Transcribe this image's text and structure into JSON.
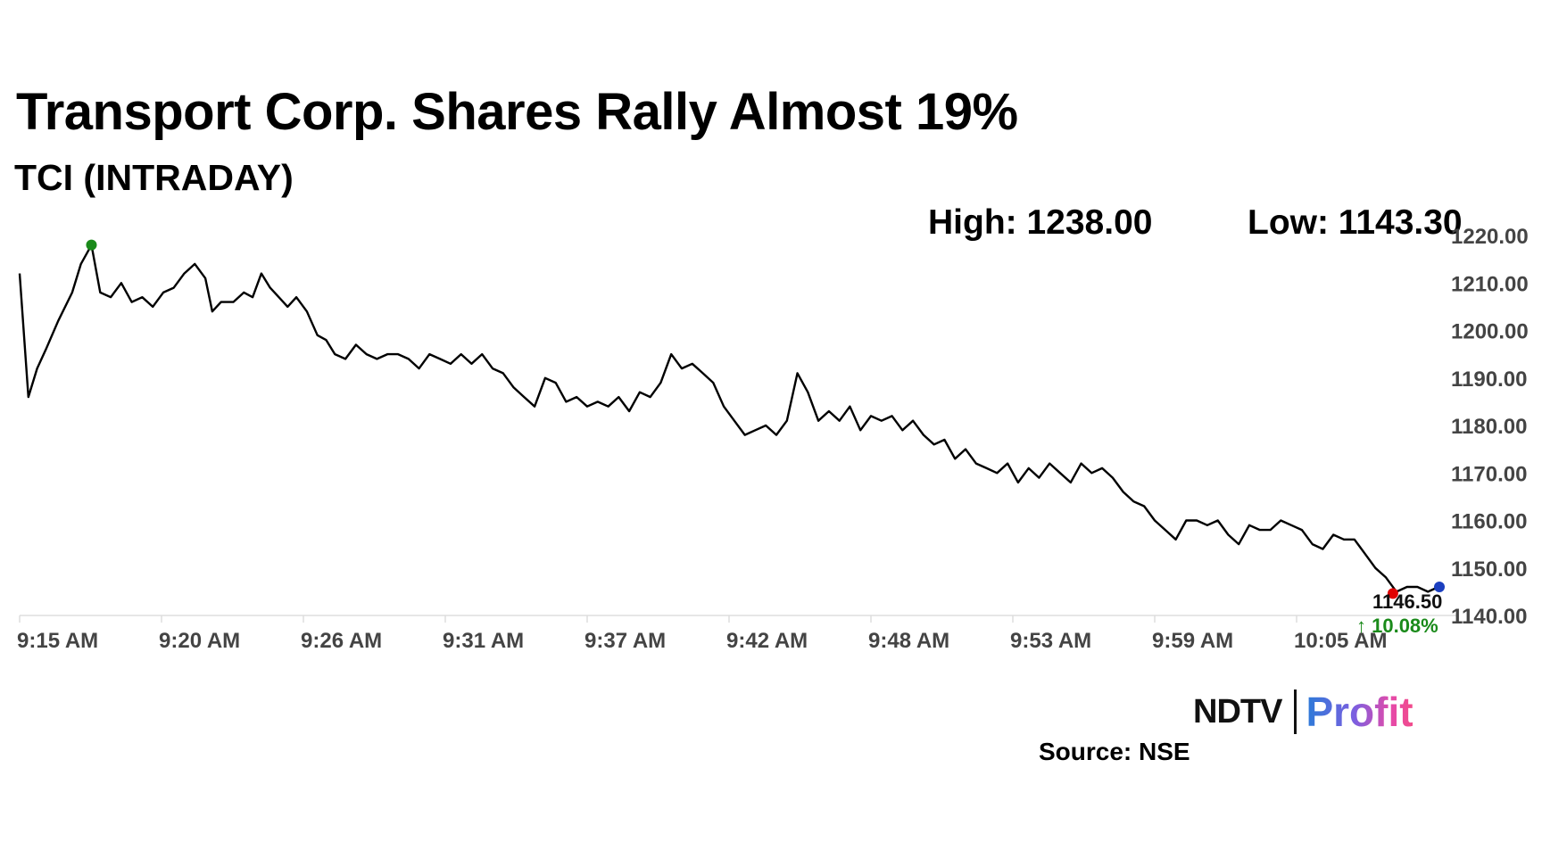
{
  "title": "Transport Corp. Shares Rally Almost 19%",
  "subtitle": "TCI (INTRADAY)",
  "high_label": "High: 1238.00",
  "low_label": "Low: 1143.30",
  "brand": {
    "ndtv": "NDTV",
    "profit": "Profit"
  },
  "source": "Source: NSE",
  "colors": {
    "line": "#000000",
    "high_marker": "#1a8a1a",
    "low_marker": "#e00000",
    "last_marker": "#1b3fbf",
    "change_up": "#1a8a1a",
    "axis": "#dddddd"
  },
  "chart_data": {
    "type": "line",
    "title": "TCI (INTRADAY)",
    "xlabel": "",
    "ylabel": "",
    "x_tick_labels": [
      "9:15 AM",
      "9:20 AM",
      "9:26 AM",
      "9:31 AM",
      "9:37 AM",
      "9:42 AM",
      "9:48 AM",
      "9:53 AM",
      "9:59 AM",
      "10:05 AM"
    ],
    "y_tick_labels": [
      "1220.00",
      "1210.00",
      "1200.00",
      "1190.00",
      "1180.00",
      "1170.00",
      "1160.00",
      "1150.00",
      "1140.00"
    ],
    "ylim": [
      1140,
      1220
    ],
    "xlim_minutes_after_open": [
      0,
      55
    ],
    "last_price_label": "1146.50",
    "change_label": "↑ 10.08%",
    "series": [
      {
        "values": [
          [
            0,
            1212
          ],
          [
            0.5,
            1186
          ],
          [
            1.0,
            1192
          ],
          [
            1.5,
            1196
          ],
          [
            2.2,
            1202
          ],
          [
            3.0,
            1208
          ],
          [
            3.5,
            1214
          ],
          [
            4.1,
            1218
          ],
          [
            4.6,
            1208
          ],
          [
            5.2,
            1207
          ],
          [
            5.8,
            1210
          ],
          [
            6.4,
            1206
          ],
          [
            7.0,
            1207
          ],
          [
            7.6,
            1205
          ],
          [
            8.2,
            1208
          ],
          [
            8.8,
            1209
          ],
          [
            9.4,
            1212
          ],
          [
            10.0,
            1214
          ],
          [
            10.6,
            1211
          ],
          [
            11.0,
            1204
          ],
          [
            11.5,
            1206
          ],
          [
            12.2,
            1206
          ],
          [
            12.8,
            1208
          ],
          [
            13.3,
            1207
          ],
          [
            13.8,
            1212
          ],
          [
            14.3,
            1209
          ],
          [
            14.8,
            1207
          ],
          [
            15.3,
            1205
          ],
          [
            15.8,
            1207
          ],
          [
            16.4,
            1204
          ],
          [
            17.0,
            1199
          ],
          [
            17.5,
            1198
          ],
          [
            18.0,
            1195
          ],
          [
            18.6,
            1194
          ],
          [
            19.2,
            1197
          ],
          [
            19.8,
            1195
          ],
          [
            20.4,
            1194
          ],
          [
            21.0,
            1195
          ],
          [
            21.6,
            1195
          ],
          [
            22.2,
            1194
          ],
          [
            22.8,
            1192
          ],
          [
            23.4,
            1195
          ],
          [
            24.0,
            1194
          ],
          [
            24.6,
            1193
          ],
          [
            25.2,
            1195
          ],
          [
            25.8,
            1193
          ],
          [
            26.4,
            1195
          ],
          [
            27.0,
            1192
          ],
          [
            27.6,
            1191
          ],
          [
            28.2,
            1188
          ],
          [
            28.8,
            1186
          ],
          [
            29.4,
            1184
          ],
          [
            30.0,
            1190
          ],
          [
            30.6,
            1189
          ],
          [
            31.2,
            1185
          ],
          [
            31.8,
            1186
          ],
          [
            32.4,
            1184
          ],
          [
            33.0,
            1185
          ],
          [
            33.6,
            1184
          ],
          [
            34.2,
            1186
          ],
          [
            34.8,
            1183
          ],
          [
            35.4,
            1187
          ],
          [
            36.0,
            1186
          ],
          [
            36.6,
            1189
          ],
          [
            37.2,
            1195
          ],
          [
            37.8,
            1192
          ],
          [
            38.4,
            1193
          ],
          [
            39.0,
            1191
          ],
          [
            39.6,
            1189
          ],
          [
            40.2,
            1184
          ],
          [
            40.8,
            1181
          ],
          [
            41.4,
            1178
          ],
          [
            42.0,
            1179
          ],
          [
            42.6,
            1180
          ],
          [
            43.2,
            1178
          ],
          [
            43.8,
            1181
          ],
          [
            44.4,
            1191
          ],
          [
            45.0,
            1187
          ],
          [
            45.6,
            1181
          ],
          [
            46.2,
            1183
          ],
          [
            46.8,
            1181
          ],
          [
            47.4,
            1184
          ],
          [
            48.0,
            1179
          ],
          [
            48.6,
            1182
          ],
          [
            49.2,
            1181
          ],
          [
            49.8,
            1182
          ],
          [
            50.4,
            1179
          ],
          [
            51.0,
            1181
          ],
          [
            51.6,
            1178
          ],
          [
            52.2,
            1176
          ],
          [
            52.8,
            1177
          ],
          [
            53.4,
            1173
          ],
          [
            54.0,
            1175
          ],
          [
            54.6,
            1172
          ],
          [
            55.2,
            1171
          ],
          [
            55.8,
            1170
          ],
          [
            56.4,
            1172
          ],
          [
            57.0,
            1168
          ],
          [
            57.6,
            1171
          ],
          [
            58.2,
            1169
          ],
          [
            58.8,
            1172
          ],
          [
            59.4,
            1170
          ],
          [
            60.0,
            1168
          ],
          [
            60.6,
            1172
          ],
          [
            61.2,
            1170
          ],
          [
            61.8,
            1171
          ],
          [
            62.4,
            1169
          ],
          [
            63.0,
            1166
          ],
          [
            63.6,
            1164
          ],
          [
            64.2,
            1163
          ],
          [
            64.8,
            1160
          ],
          [
            65.4,
            1158
          ],
          [
            66.0,
            1156
          ],
          [
            66.6,
            1160
          ],
          [
            67.2,
            1160
          ],
          [
            67.8,
            1159
          ],
          [
            68.4,
            1160
          ],
          [
            69.0,
            1157
          ],
          [
            69.6,
            1155
          ],
          [
            70.2,
            1159
          ],
          [
            70.8,
            1158
          ],
          [
            71.4,
            1158
          ],
          [
            72.0,
            1160
          ],
          [
            72.6,
            1159
          ],
          [
            73.2,
            1158
          ],
          [
            73.8,
            1155
          ],
          [
            74.4,
            1154
          ],
          [
            75.0,
            1157
          ],
          [
            75.6,
            1156
          ],
          [
            76.2,
            1156
          ],
          [
            76.8,
            1153
          ],
          [
            77.4,
            1150
          ],
          [
            78.0,
            1148
          ],
          [
            78.6,
            1145
          ],
          [
            79.2,
            1146
          ],
          [
            79.8,
            1146
          ],
          [
            80.4,
            1145
          ],
          [
            81.0,
            1146
          ]
        ]
      }
    ]
  }
}
